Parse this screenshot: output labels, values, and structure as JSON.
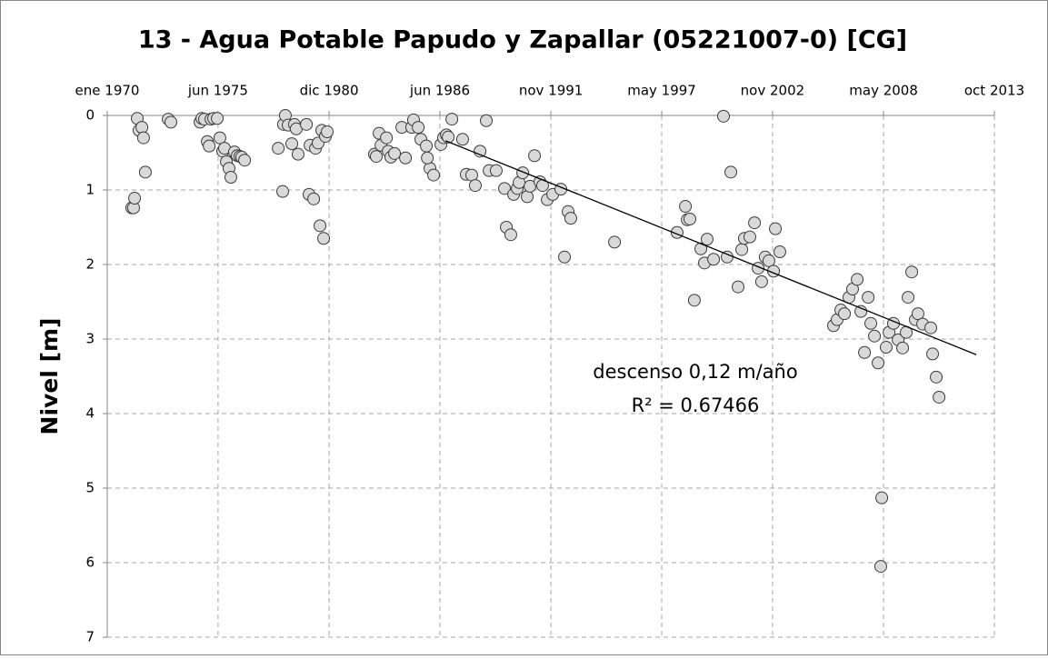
{
  "chart_data": {
    "type": "scatter",
    "title": "13 - Agua Potable Papudo y Zapallar (05221007-0) [CG]",
    "y_label": "Nivel [m]",
    "xlim": [
      1970.0,
      2013.79
    ],
    "xticks": [
      {
        "value": 1970.0,
        "label": "ene 1970"
      },
      {
        "value": 1975.47,
        "label": "jun 1975"
      },
      {
        "value": 1980.95,
        "label": "dic 1980"
      },
      {
        "value": 1986.42,
        "label": "jun 1986"
      },
      {
        "value": 1991.9,
        "label": "nov 1991"
      },
      {
        "value": 1997.37,
        "label": "may 1997"
      },
      {
        "value": 2002.84,
        "label": "nov 2002"
      },
      {
        "value": 2008.32,
        "label": "may 2008"
      },
      {
        "value": 2013.79,
        "label": "oct 2013"
      }
    ],
    "ylim": [
      0,
      7
    ],
    "yticks": [
      0,
      1,
      2,
      3,
      4,
      5,
      6,
      7
    ],
    "y_inverted": true,
    "grid": true,
    "series": [
      {
        "color": "#d9d9d9",
        "x": [
          1971.21,
          1971.3,
          1971.35,
          1971.48,
          1971.57,
          1971.71,
          1971.79,
          1971.88,
          1973.01,
          1973.14,
          1974.58,
          1974.67,
          1974.8,
          1974.94,
          1975.03,
          1975.12,
          1975.25,
          1975.43,
          1975.56,
          1975.7,
          1975.79,
          1975.88,
          1976.01,
          1976.1,
          1976.28,
          1976.42,
          1976.55,
          1976.64,
          1976.78,
          1978.44,
          1978.66,
          1978.7,
          1978.79,
          1978.93,
          1979.11,
          1979.24,
          1979.33,
          1979.42,
          1979.83,
          1979.96,
          1980.01,
          1980.19,
          1980.28,
          1980.41,
          1980.5,
          1980.59,
          1980.68,
          1980.77,
          1980.86,
          1983.19,
          1983.28,
          1983.42,
          1983.51,
          1983.78,
          1983.87,
          1984.0,
          1984.18,
          1984.54,
          1984.72,
          1985.03,
          1985.12,
          1985.35,
          1985.48,
          1985.75,
          1985.93,
          1986.11,
          1985.8,
          1986.47,
          1986.6,
          1986.74,
          1986.83,
          1987.01,
          1987.54,
          1987.72,
          1987.99,
          1988.17,
          1988.4,
          1988.71,
          1988.85,
          1989.2,
          1989.61,
          1989.7,
          1989.92,
          1990.06,
          1990.24,
          1990.33,
          1990.51,
          1990.73,
          1990.87,
          1991.09,
          1991.36,
          1991.49,
          1991.72,
          1991.99,
          1992.39,
          1992.75,
          1992.88,
          1992.57,
          1995.04,
          1998.13,
          1998.54,
          1998.63,
          1998.76,
          1998.98,
          1999.3,
          1999.48,
          1999.61,
          1999.93,
          2000.42,
          2000.6,
          2000.78,
          2001.14,
          2001.32,
          2001.45,
          2001.72,
          2001.95,
          2002.13,
          2002.3,
          2002.48,
          2002.66,
          2002.89,
          2002.98,
          2003.2,
          2005.85,
          2006.03,
          2006.21,
          2006.39,
          2006.61,
          2006.79,
          2007.02,
          2007.2,
          2007.38,
          2007.56,
          2007.69,
          2007.87,
          2008.05,
          2008.23,
          2008.18,
          2008.45,
          2008.59,
          2008.81,
          2009.04,
          2009.26,
          2009.44,
          2009.53,
          2009.71,
          2009.89,
          2010.02,
          2010.25,
          2010.65,
          2010.74,
          2010.92,
          2011.06
        ],
        "values": [
          1.24,
          1.24,
          1.11,
          0.04,
          0.2,
          0.16,
          0.3,
          0.76,
          0.05,
          0.09,
          0.09,
          0.04,
          0.05,
          0.35,
          0.41,
          0.05,
          0.04,
          0.04,
          0.3,
          0.48,
          0.44,
          0.62,
          0.71,
          0.83,
          0.49,
          0.54,
          0.55,
          0.56,
          0.6,
          0.44,
          1.02,
          0.12,
          0.0,
          0.13,
          0.38,
          0.12,
          0.18,
          0.52,
          0.12,
          1.06,
          0.4,
          1.12,
          0.44,
          0.37,
          1.48,
          0.2,
          1.65,
          0.28,
          0.22,
          0.52,
          0.55,
          0.24,
          0.4,
          0.3,
          0.48,
          0.56,
          0.51,
          0.16,
          0.57,
          0.16,
          0.06,
          0.16,
          0.32,
          0.41,
          0.71,
          0.8,
          0.57,
          0.39,
          0.3,
          0.26,
          0.29,
          0.05,
          0.32,
          0.79,
          0.8,
          0.94,
          0.48,
          0.07,
          0.74,
          0.74,
          0.98,
          1.5,
          1.6,
          1.06,
          0.98,
          0.9,
          0.77,
          1.09,
          0.95,
          0.54,
          0.89,
          0.94,
          1.13,
          1.06,
          0.99,
          1.29,
          1.38,
          1.9,
          1.7,
          1.57,
          1.22,
          1.4,
          1.39,
          2.48,
          1.79,
          1.98,
          1.66,
          1.93,
          0.01,
          1.9,
          0.76,
          2.3,
          1.8,
          1.65,
          1.63,
          1.44,
          2.05,
          2.23,
          1.9,
          1.95,
          2.09,
          1.52,
          1.83,
          2.82,
          2.74,
          2.61,
          2.66,
          2.44,
          2.33,
          2.2,
          2.63,
          3.18,
          2.44,
          2.79,
          2.96,
          3.32,
          5.13,
          6.05,
          3.11,
          2.91,
          2.79,
          3.01,
          3.12,
          2.91,
          2.44,
          2.1,
          2.74,
          2.66,
          2.8,
          2.85,
          3.2,
          3.51,
          3.78
        ]
      }
    ],
    "trendline": {
      "x": [
        1986.7,
        2012.9
      ],
      "values": [
        0.34,
        3.21
      ],
      "color": "#000000"
    },
    "annotations": [
      "descenso 0,12 m/año",
      "R² = 0.67466"
    ]
  }
}
